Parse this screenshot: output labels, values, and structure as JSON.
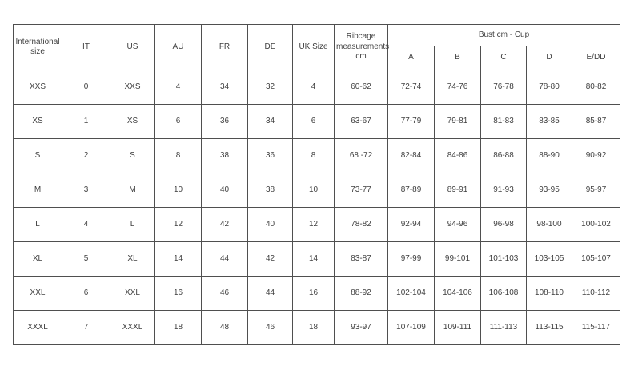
{
  "table": {
    "column_headers": [
      "International size",
      "IT",
      "US",
      "AU",
      "FR",
      "DE",
      "UK Size",
      "Ribcage measurements cm"
    ],
    "bust_group_header": "Bust cm - Cup",
    "cup_headers": [
      "A",
      "B",
      "C",
      "D",
      "E/DD"
    ],
    "rows": [
      {
        "cells": [
          "XXS",
          "0",
          "XXS",
          "4",
          "34",
          "32",
          "4",
          "60-62",
          "72-74",
          "74-76",
          "76-78",
          "78-80",
          "80-82"
        ]
      },
      {
        "cells": [
          "XS",
          "1",
          "XS",
          "6",
          "36",
          "34",
          "6",
          "63-67",
          "77-79",
          "79-81",
          "81-83",
          "83-85",
          "85-87"
        ]
      },
      {
        "cells": [
          "S",
          "2",
          "S",
          "8",
          "38",
          "36",
          "8",
          "68 -72",
          "82-84",
          "84-86",
          "86-88",
          "88-90",
          "90-92"
        ]
      },
      {
        "cells": [
          "M",
          "3",
          "M",
          "10",
          "40",
          "38",
          "10",
          "73-77",
          "87-89",
          "89-91",
          "91-93",
          "93-95",
          "95-97"
        ]
      },
      {
        "cells": [
          "L",
          "4",
          "L",
          "12",
          "42",
          "40",
          "12",
          "78-82",
          "92-94",
          "94-96",
          "96-98",
          "98-100",
          "100-102"
        ]
      },
      {
        "cells": [
          "XL",
          "5",
          "XL",
          "14",
          "44",
          "42",
          "14",
          "83-87",
          "97-99",
          "99-101",
          "101-103",
          "103-105",
          "105-107"
        ]
      },
      {
        "cells": [
          "XXL",
          "6",
          "XXL",
          "16",
          "46",
          "44",
          "16",
          "88-92",
          "102-104",
          "104-106",
          "106-108",
          "108-110",
          "110-112"
        ]
      },
      {
        "cells": [
          "XXXL",
          "7",
          "XXXL",
          "18",
          "48",
          "46",
          "18",
          "93-97",
          "107-109",
          "109-111",
          "111-113",
          "113-115",
          "115-117"
        ]
      }
    ],
    "colors": {
      "border": "#4f4f4f",
      "text": "#3f3f3f",
      "background": "#ffffff"
    }
  }
}
